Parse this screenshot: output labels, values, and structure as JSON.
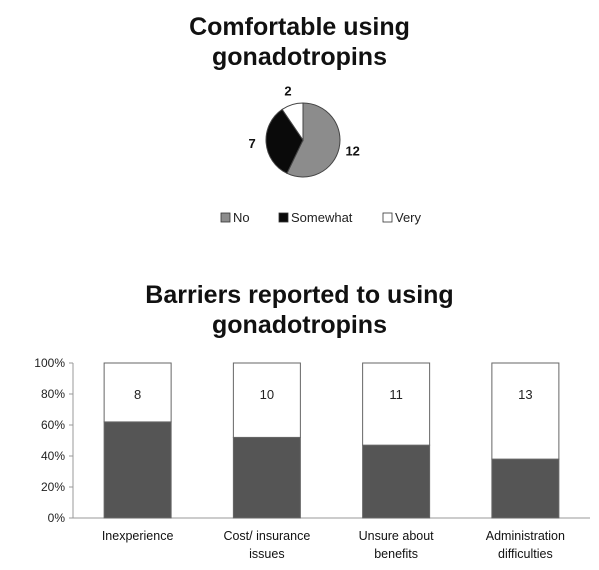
{
  "chart_data": [
    {
      "type": "pie",
      "title": [
        "Comfortable using",
        "gonadotropins"
      ],
      "categories": [
        "No",
        "Somewhat",
        "Very"
      ],
      "values": [
        12,
        7,
        2
      ],
      "colors": [
        "#8c8c8c",
        "#0a0a0a",
        "#ffffff"
      ],
      "legend": "bottom"
    },
    {
      "type": "bar",
      "stacked": true,
      "percent": true,
      "title": [
        "Barriers reported to using",
        "gonadotropins"
      ],
      "categories": [
        [
          "Inexperience"
        ],
        [
          "Cost/ insurance",
          "issues"
        ],
        [
          "Unsure about",
          "benefits"
        ],
        [
          "Administration",
          "difficulties"
        ]
      ],
      "series": [
        {
          "color": "#555555",
          "values": [
            62,
            52,
            47,
            38
          ]
        },
        {
          "color": "#ffffff",
          "values": [
            38,
            48,
            53,
            62
          ],
          "labels": [
            "8",
            "10",
            "11",
            "13"
          ]
        }
      ],
      "ylim": [
        0,
        100
      ],
      "yticks": [
        "0%",
        "20%",
        "40%",
        "60%",
        "80%",
        "100%"
      ],
      "grid": false
    }
  ]
}
